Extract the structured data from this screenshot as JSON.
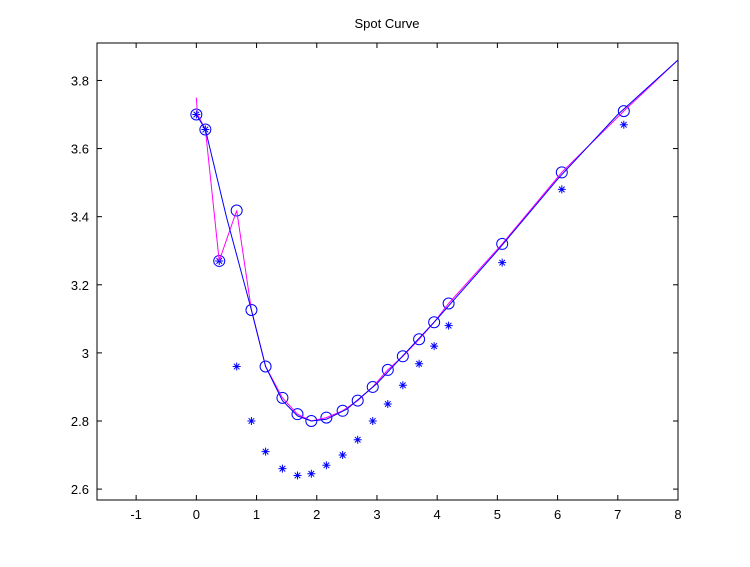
{
  "chart_data": {
    "type": "line",
    "title": "Spot Curve",
    "xlabel": "",
    "ylabel": "",
    "xlim": [
      -1.65,
      8
    ],
    "ylim": [
      2.568,
      3.91
    ],
    "xticks": [
      -1,
      0,
      1,
      2,
      3,
      4,
      5,
      6,
      7,
      8
    ],
    "xtick_labels": [
      "-1",
      "0",
      "1",
      "2",
      "3",
      "4",
      "5",
      "6",
      "7",
      "8"
    ],
    "yticks": [
      2.6,
      2.8,
      3.0,
      3.2,
      3.4,
      3.6,
      3.8
    ],
    "ytick_labels": [
      "2.6",
      "2.8",
      "3",
      "3.2",
      "3.4",
      "3.6",
      "3.8"
    ],
    "grid": false,
    "series": [
      {
        "name": "circles",
        "style": "marker-circle",
        "color": "#0000ff",
        "x": [
          0,
          0.15,
          0.38,
          0.67,
          0.915,
          1.15,
          1.43,
          1.68,
          1.91,
          2.16,
          2.43,
          2.68,
          2.93,
          3.18,
          3.43,
          3.7,
          3.95,
          4.19,
          5.08,
          6.07,
          7.1
        ],
        "y": [
          3.7,
          3.656,
          3.27,
          3.418,
          3.126,
          2.96,
          2.868,
          2.82,
          2.8,
          2.81,
          2.83,
          2.86,
          2.9,
          2.95,
          2.99,
          3.04,
          3.09,
          3.145,
          3.32,
          3.53,
          3.71
        ]
      },
      {
        "name": "stars",
        "style": "marker-star",
        "color": "#0000ff",
        "x": [
          0,
          0.15,
          0.38,
          0.67,
          0.915,
          1.15,
          1.43,
          1.68,
          1.91,
          2.16,
          2.43,
          2.68,
          2.93,
          3.18,
          3.43,
          3.7,
          3.95,
          4.19,
          5.08,
          6.07,
          7.1
        ],
        "y": [
          3.7,
          3.656,
          3.27,
          2.96,
          2.8,
          2.71,
          2.66,
          2.64,
          2.645,
          2.67,
          2.7,
          2.745,
          2.8,
          2.85,
          2.905,
          2.968,
          3.02,
          3.08,
          3.265,
          3.48,
          3.67
        ]
      },
      {
        "name": "magenta-line",
        "style": "line",
        "color": "#ff00ff",
        "x": [
          0,
          0.02,
          0.15,
          0.38,
          0.67,
          0.915,
          1.15,
          1.43,
          1.68,
          1.91,
          2.16,
          2.43,
          2.68,
          2.93,
          3.18,
          3.43,
          3.7,
          3.95,
          4.19,
          5.08,
          6.07,
          7.1,
          8
        ],
        "y": [
          3.75,
          3.7,
          3.656,
          3.27,
          3.418,
          3.126,
          2.96,
          2.868,
          2.82,
          2.8,
          2.81,
          2.83,
          2.86,
          2.9,
          2.95,
          2.99,
          3.04,
          3.09,
          3.145,
          3.32,
          3.53,
          3.71,
          3.86
        ]
      },
      {
        "name": "blue-line",
        "style": "line",
        "color": "#0000ff",
        "x": [
          0,
          0.15,
          0.5,
          0.915,
          1.15,
          1.43,
          1.68,
          1.91,
          2.16,
          2.5,
          3.0,
          3.5,
          4.0,
          5.0,
          6.0,
          7.0,
          8.0
        ],
        "y": [
          3.7,
          3.656,
          3.4,
          3.126,
          2.96,
          2.86,
          2.815,
          2.8,
          2.805,
          2.835,
          2.91,
          3.005,
          3.1,
          3.3,
          3.51,
          3.7,
          3.86
        ]
      }
    ]
  }
}
